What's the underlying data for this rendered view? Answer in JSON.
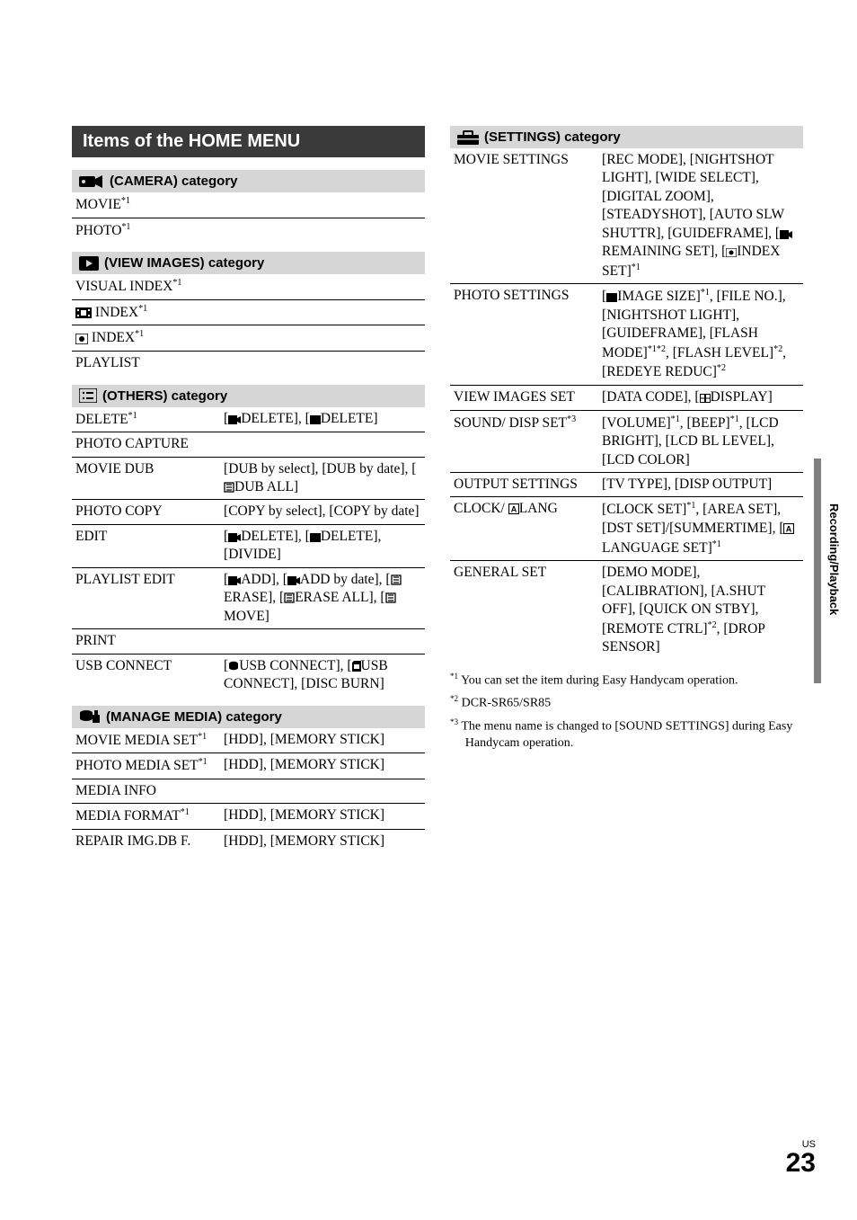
{
  "title": "Items of the HOME MENU",
  "sidebar_label": "Recording/Playback",
  "page_label_small": "US",
  "page_number": "23",
  "left": {
    "camera": {
      "header": "(CAMERA) category",
      "rows": [
        {
          "k": "MOVIE",
          "sup": "*1"
        },
        {
          "k": "PHOTO",
          "sup": "*1"
        }
      ]
    },
    "view": {
      "header": "(VIEW IMAGES) category",
      "rows": [
        {
          "k": "VISUAL INDEX",
          "sup": "*1"
        },
        {
          "icon": "film",
          "k": "INDEX",
          "sup": "*1"
        },
        {
          "icon": "face",
          "k": "INDEX",
          "sup": "*1"
        },
        {
          "k": "PLAYLIST"
        }
      ]
    },
    "others": {
      "header": "(OTHERS) category",
      "rows": [
        {
          "k": "DELETE",
          "sup": "*1",
          "v_parts": [
            {
              "icon": "movie"
            },
            {
              "t": "DELETE], ["
            },
            {
              "icon": "photo"
            },
            {
              "t": "DELETE]"
            }
          ],
          "v_prefix": "["
        },
        {
          "k": "PHOTO CAPTURE"
        },
        {
          "k": "MOVIE DUB",
          "v": "[DUB by select], [DUB by date], [",
          "v_icon_trail": "playlist",
          "v_tail": "DUB ALL]"
        },
        {
          "k": "PHOTO COPY",
          "v": "[COPY by select], [COPY by date]"
        },
        {
          "k": "EDIT",
          "v_parts": [
            {
              "t": "["
            },
            {
              "icon": "movie"
            },
            {
              "t": "DELETE], ["
            },
            {
              "icon": "photo"
            },
            {
              "t": "DELETE], [DIVIDE]"
            }
          ]
        },
        {
          "k": "PLAYLIST EDIT",
          "v_parts": [
            {
              "t": "["
            },
            {
              "icon": "movie"
            },
            {
              "t": "ADD], ["
            },
            {
              "icon": "movie"
            },
            {
              "t": "ADD by date], ["
            },
            {
              "icon": "playlist"
            },
            {
              "t": "ERASE], ["
            },
            {
              "icon": "playlist"
            },
            {
              "t": "ERASE ALL], ["
            },
            {
              "icon": "playlist"
            },
            {
              "t": "MOVE]"
            }
          ]
        },
        {
          "k": "PRINT"
        },
        {
          "k": "USB CONNECT",
          "v_parts": [
            {
              "t": "["
            },
            {
              "icon": "disk"
            },
            {
              "t": "USB CONNECT], ["
            },
            {
              "icon": "card"
            },
            {
              "t": "USB CONNECT], [DISC BURN]"
            }
          ]
        }
      ]
    },
    "manage": {
      "header": "(MANAGE MEDIA) category",
      "rows": [
        {
          "k": "MOVIE MEDIA SET",
          "sup": "*1",
          "v": "[HDD], [MEMORY STICK]"
        },
        {
          "k": "PHOTO MEDIA SET",
          "sup": "*1",
          "v": "[HDD], [MEMORY STICK]"
        },
        {
          "k": "MEDIA INFO"
        },
        {
          "k": "MEDIA FORMAT",
          "sup": "*1",
          "v": "[HDD], [MEMORY STICK]"
        },
        {
          "k": "REPAIR IMG.DB F.",
          "v": "[HDD], [MEMORY STICK]"
        }
      ]
    }
  },
  "right": {
    "settings": {
      "header": "(SETTINGS) category",
      "rows": [
        {
          "k": "MOVIE SETTINGS",
          "v_parts": [
            {
              "t": "[REC MODE], [NIGHTSHOT LIGHT], [WIDE SELECT], [DIGITAL ZOOM], [STEADYSHOT], [AUTO SLW SHUTTR], [GUIDEFRAME], ["
            },
            {
              "icon": "movie"
            },
            {
              "t": "REMAINING SET], ["
            },
            {
              "icon": "face"
            },
            {
              "t": "INDEX SET]"
            },
            {
              "sup": "*1"
            }
          ]
        },
        {
          "k": "PHOTO SETTINGS",
          "v_parts": [
            {
              "t": "["
            },
            {
              "icon": "photo"
            },
            {
              "t": "IMAGE SIZE]"
            },
            {
              "sup": "*1"
            },
            {
              "t": ", [FILE NO.], [NIGHTSHOT LIGHT], [GUIDEFRAME], [FLASH MODE]"
            },
            {
              "sup": "*1*2"
            },
            {
              "t": ", [FLASH LEVEL]"
            },
            {
              "sup": "*2"
            },
            {
              "t": ", [REDEYE REDUC]"
            },
            {
              "sup": "*2"
            }
          ]
        },
        {
          "k": "VIEW IMAGES SET",
          "v_parts": [
            {
              "t": "[DATA CODE], ["
            },
            {
              "icon": "grid"
            },
            {
              "t": "DISPLAY]"
            }
          ]
        },
        {
          "k": "SOUND/ DISP SET",
          "ksup": "*3",
          "v_parts": [
            {
              "t": "[VOLUME]"
            },
            {
              "sup": "*1"
            },
            {
              "t": ", [BEEP]"
            },
            {
              "sup": "*1"
            },
            {
              "t": ", [LCD BRIGHT], [LCD BL LEVEL], [LCD COLOR]"
            }
          ]
        },
        {
          "k": "OUTPUT SETTINGS",
          "v": "[TV TYPE], [DISP OUTPUT]"
        },
        {
          "k_pre": "CLOCK/ ",
          "k_icon": "lang",
          "k_post": "LANG",
          "v_parts": [
            {
              "t": "[CLOCK SET]"
            },
            {
              "sup": "*1"
            },
            {
              "t": ", [AREA SET], [DST SET]/[SUMMERTIME], ["
            },
            {
              "icon": "lang"
            },
            {
              "t": "LANGUAGE SET]"
            },
            {
              "sup": "*1"
            }
          ]
        },
        {
          "k": "GENERAL SET",
          "v_parts": [
            {
              "t": "[DEMO MODE], [CALIBRATION], [A.SHUT OFF], [QUICK ON STBY], [REMOTE CTRL]"
            },
            {
              "sup": "*2"
            },
            {
              "t": ", [DROP SENSOR]"
            }
          ]
        }
      ]
    }
  },
  "footnotes": [
    {
      "mark": "*1",
      "text": "You can set the item during Easy Handycam operation."
    },
    {
      "mark": "*2",
      "text": "DCR-SR65/SR85"
    },
    {
      "mark": "*3",
      "text": "The menu name is changed to [SOUND SETTINGS] during Easy Handycam operation."
    }
  ]
}
